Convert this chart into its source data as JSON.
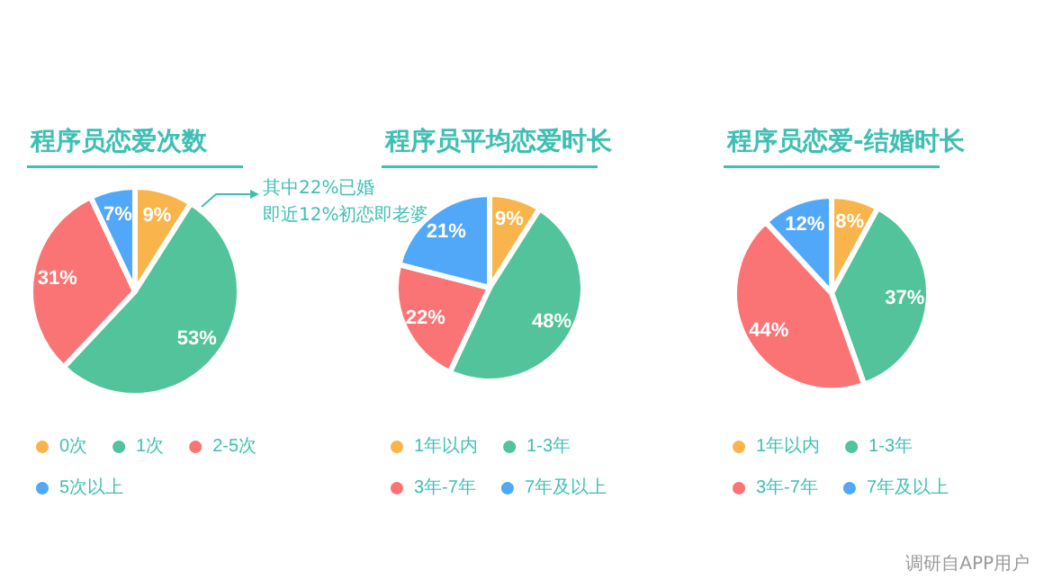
{
  "chart_data": [
    {
      "type": "pie",
      "title": "程序员恋爱次数",
      "categories": [
        "0次",
        "1次",
        "2-5次",
        "5次以上"
      ],
      "values": [
        9,
        53,
        31,
        7
      ],
      "value_labels": [
        "9%",
        "53%",
        "31%",
        "7%"
      ],
      "colors": [
        "#f9b54c",
        "#52c39a",
        "#fa7475",
        "#52a8f8"
      ],
      "legend": "bottom",
      "annotations": [
        "其中22%已婚",
        "即近12%初恋即老婆"
      ]
    },
    {
      "type": "pie",
      "title": "程序员平均恋爱时长",
      "categories": [
        "1年以内",
        "1-3年",
        "3年-7年",
        "7年及以上"
      ],
      "values": [
        9,
        48,
        22,
        21
      ],
      "value_labels": [
        "9%",
        "48%",
        "22%",
        "21%"
      ],
      "colors": [
        "#f9b54c",
        "#52c39a",
        "#fa7475",
        "#52a8f8"
      ],
      "legend": "bottom"
    },
    {
      "type": "pie",
      "title": "程序员恋爱-结婚时长",
      "categories": [
        "1年以内",
        "1-3年",
        "3年-7年",
        "7年及以上"
      ],
      "values": [
        8,
        37,
        44,
        12
      ],
      "value_labels": [
        "8%",
        "37%",
        "44%",
        "12%"
      ],
      "colors": [
        "#f9b54c",
        "#52c39a",
        "#fa7475",
        "#52a8f8"
      ],
      "legend": "bottom",
      "annotations": [
        "调研自APP用户"
      ]
    }
  ]
}
